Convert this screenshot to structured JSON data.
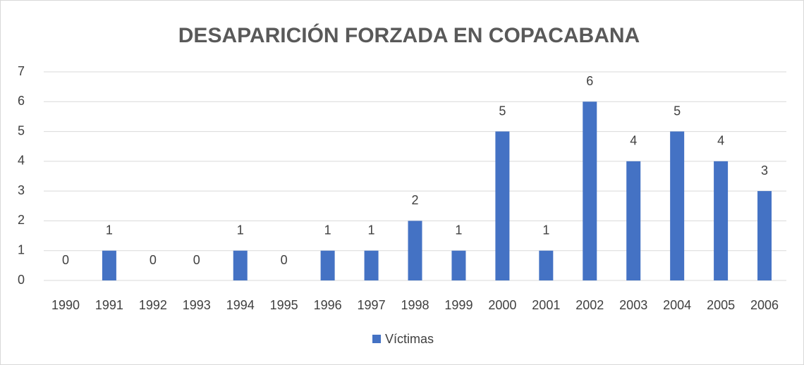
{
  "chart_data": {
    "type": "bar",
    "title": "DESAPARICIÓN FORZADA EN COPACABANA",
    "categories": [
      "1990",
      "1991",
      "1992",
      "1993",
      "1994",
      "1995",
      "1996",
      "1997",
      "1998",
      "1999",
      "2000",
      "2001",
      "2002",
      "2003",
      "2004",
      "2005",
      "2006"
    ],
    "series": [
      {
        "name": "Víctimas",
        "color": "#4472c4",
        "values": [
          0,
          1,
          0,
          0,
          1,
          0,
          1,
          1,
          2,
          1,
          5,
          1,
          6,
          4,
          5,
          4,
          3
        ]
      }
    ],
    "ylim": [
      0,
      7
    ],
    "yticks": [
      0,
      1,
      2,
      3,
      4,
      5,
      6,
      7
    ],
    "grid": true,
    "legend": "bottom"
  }
}
